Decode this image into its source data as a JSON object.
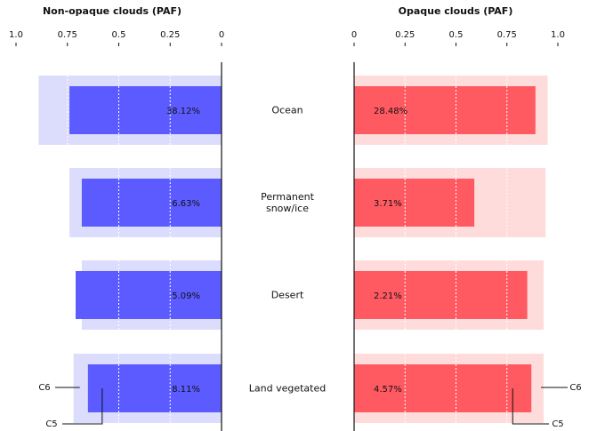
{
  "chart_data": [
    {
      "type": "bar",
      "title": "Non-opaque clouds (PAF)",
      "categories": [
        "Ocean",
        "Permanent snow/ice",
        "Desert",
        "Land vegetated"
      ],
      "series": [
        {
          "name": "C6",
          "color": "#dcdcfc",
          "values": [
            0.89,
            0.74,
            0.68,
            0.72
          ]
        },
        {
          "name": "C5",
          "color": "#5b5bff",
          "values": [
            0.74,
            0.68,
            0.71,
            0.65
          ]
        }
      ],
      "percent_labels": [
        "38.12%",
        "6.63%",
        "5.09%",
        "8.11%"
      ],
      "xlim": [
        1,
        0
      ],
      "xticks": [
        {
          "value": 1,
          "label": "1.0"
        },
        0.75,
        0.5,
        0.25,
        0
      ]
    },
    {
      "type": "bar",
      "title": "Opaque clouds (PAF)",
      "series": [
        {
          "name": "C6",
          "color": "#ffdcdc",
          "values": [
            0.95,
            0.94,
            0.93,
            0.93
          ]
        },
        {
          "name": "C5",
          "color": "#ff5a62",
          "values": [
            0.89,
            0.59,
            0.85,
            0.87
          ]
        }
      ],
      "percent_labels": [
        "28.48%",
        "3.71%",
        "2.21%",
        "4.57%"
      ],
      "xlim": [
        0,
        1
      ],
      "xticks": [
        0,
        0.25,
        0.5,
        0.75,
        {
          "value": 1,
          "label": "1.0"
        }
      ]
    }
  ]
}
